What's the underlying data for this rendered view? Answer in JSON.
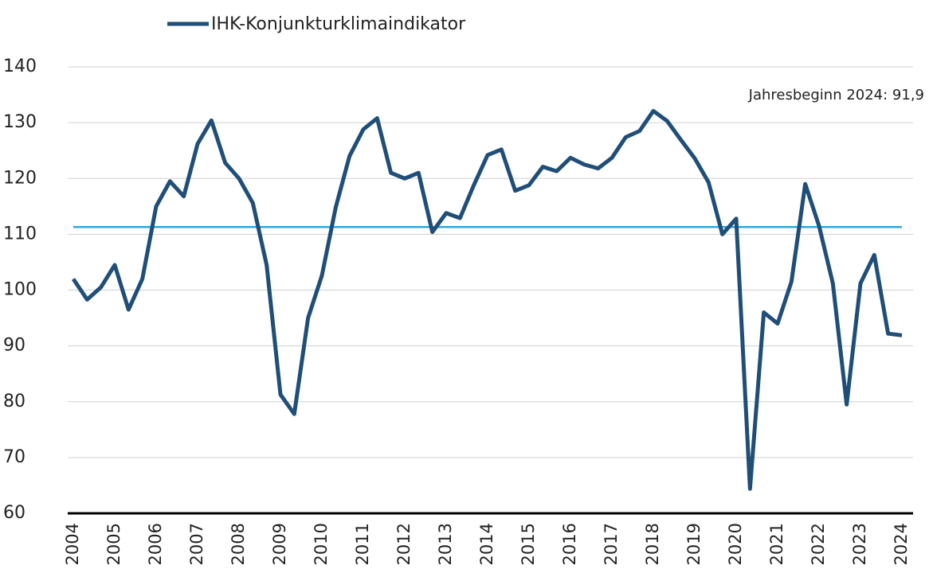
{
  "chart_data": {
    "type": "line",
    "legend_label": "IHK-Konjunkturklimaindikator",
    "annotation": "Jahresbeginn 2024: 91,9",
    "categories": [
      "2004",
      null,
      null,
      "2005",
      null,
      null,
      "2006",
      null,
      null,
      "2007",
      null,
      null,
      "2008",
      null,
      null,
      "2009",
      null,
      null,
      "2010",
      null,
      null,
      "2011",
      null,
      null,
      "2012",
      null,
      null,
      "2013",
      null,
      null,
      "2014",
      null,
      null,
      "2015",
      null,
      null,
      "2016",
      null,
      null,
      "2017",
      null,
      null,
      "2018",
      null,
      null,
      "2019",
      null,
      null,
      "2020",
      null,
      null,
      "2021",
      null,
      null,
      "2022",
      null,
      null,
      "2023",
      null,
      null,
      "2024"
    ],
    "series": [
      {
        "name": "IHK-Konjunkturklimaindikator",
        "color": "#1f4e79",
        "values": [
          102,
          98.3,
          100.5,
          104.5,
          96.5,
          102,
          115,
          119.5,
          116.8,
          126.2,
          130.4,
          122.8,
          120,
          115.6,
          104.5,
          81.3,
          77.8,
          95,
          102.6,
          114.8,
          124,
          128.8,
          130.8,
          121,
          120,
          121,
          110.4,
          113.8,
          112.9,
          118.8,
          124.2,
          125.2,
          117.8,
          118.8,
          122.1,
          121.3,
          123.7,
          122.5,
          121.8,
          123.7,
          127.4,
          128.5,
          132.1,
          130.3,
          126.9,
          123.6,
          119.3,
          110,
          112.8,
          64.4,
          96,
          94,
          101.5,
          119,
          111.5,
          101.2,
          79.5,
          101.2,
          106.3,
          92.2,
          91.9
        ]
      }
    ],
    "reference_line": {
      "value": 111.3,
      "color": "#29a9e1"
    },
    "ylim": [
      60,
      140
    ],
    "yticks": [
      60,
      70,
      80,
      90,
      100,
      110,
      120,
      130,
      140
    ],
    "grid": true
  }
}
